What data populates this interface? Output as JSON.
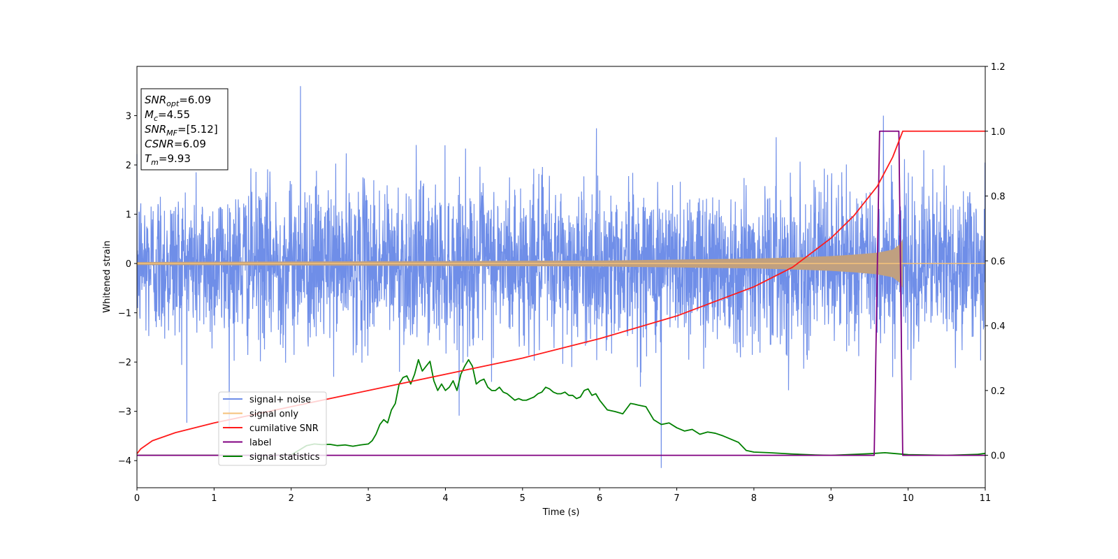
{
  "chart_data": {
    "type": "line",
    "xlabel": "Time (s)",
    "ylabel": "Whitened strain",
    "xlim": [
      0,
      11
    ],
    "ylim": [
      -4.55,
      4.0
    ],
    "y2lim": [
      -0.1,
      1.2
    ],
    "x_ticks": [
      0,
      1,
      2,
      3,
      4,
      5,
      6,
      7,
      8,
      9,
      10,
      11
    ],
    "x_tick_labels": [
      "0",
      "1",
      "2",
      "3",
      "4",
      "5",
      "6",
      "7",
      "8",
      "9",
      "10",
      "11"
    ],
    "y_ticks": [
      3,
      2,
      1,
      0,
      -1,
      -2,
      -3,
      -4
    ],
    "y_tick_labels": [
      "3",
      "2",
      "1",
      "0",
      "−1",
      "−2",
      "−3",
      "−4"
    ],
    "y2_ticks": [
      1.2,
      1.0,
      0.8,
      0.6,
      0.4,
      0.2,
      0.0
    ],
    "y2_tick_labels": [
      "1.2",
      "1.0",
      "0.8",
      "0.6",
      "0.4",
      "0.2",
      "0.0"
    ],
    "legend_location": "lower-left",
    "info_box": [
      {
        "main": "SNR",
        "sub": "opt",
        "rest": "=6.09"
      },
      {
        "main": "M",
        "sub": "c",
        "rest": "=4.55"
      },
      {
        "main": "SNR",
        "sub": "MF",
        "rest": "=[5.12]"
      },
      {
        "main": "CSNR",
        "sub": "",
        "rest": "=6.09"
      },
      {
        "main": "T",
        "sub": "m",
        "rest": "=9.93"
      }
    ],
    "series": [
      {
        "name": "signal+ noise",
        "axis": "left",
        "color": "#6f8ee8",
        "noise_std": 0.8,
        "y_range_observed": [
          -4.15,
          3.6
        ],
        "notable_peaks": {
          "x": [
            2.12,
            9.68,
            6.8
          ],
          "y": [
            3.6,
            3.0,
            -4.15
          ]
        }
      },
      {
        "name": "signal only",
        "axis": "left",
        "color": "#f5c27a",
        "fill_color": "#c0a080",
        "envelope": {
          "x": [
            0,
            2,
            4,
            6,
            7,
            8,
            8.5,
            9,
            9.3,
            9.6,
            9.8,
            9.9,
            9.93
          ],
          "y": [
            0.03,
            0.04,
            0.05,
            0.06,
            0.08,
            0.1,
            0.12,
            0.15,
            0.18,
            0.22,
            0.28,
            0.4,
            0.5
          ]
        },
        "after_merger_value": 0.0
      },
      {
        "name": "cumilative SNR",
        "axis": "right",
        "color": "#ff1a1a",
        "x": [
          0,
          0.05,
          0.2,
          0.5,
          1,
          2,
          3,
          4,
          5,
          6,
          7,
          8,
          8.5,
          9,
          9.3,
          9.6,
          9.8,
          9.93,
          11
        ],
        "y": [
          0.005,
          0.02,
          0.045,
          0.07,
          0.1,
          0.15,
          0.2,
          0.25,
          0.3,
          0.36,
          0.43,
          0.52,
          0.58,
          0.67,
          0.74,
          0.83,
          0.92,
          1.0,
          1.0
        ]
      },
      {
        "name": "label",
        "axis": "right",
        "color": "#800080",
        "x": [
          0,
          9.56,
          9.63,
          9.88,
          9.93,
          11
        ],
        "y": [
          0,
          0,
          1,
          1,
          0,
          0
        ]
      },
      {
        "name": "signal statistics",
        "axis": "right",
        "color": "#008000",
        "x": [
          0,
          0.5,
          1,
          1.5,
          2,
          2.2,
          2.3,
          2.4,
          2.5,
          2.6,
          2.7,
          2.8,
          2.9,
          3.0,
          3.05,
          3.1,
          3.15,
          3.2,
          3.25,
          3.3,
          3.35,
          3.4,
          3.45,
          3.5,
          3.55,
          3.6,
          3.65,
          3.7,
          3.75,
          3.8,
          3.85,
          3.9,
          3.95,
          4.0,
          4.05,
          4.1,
          4.15,
          4.2,
          4.25,
          4.3,
          4.35,
          4.4,
          4.45,
          4.5,
          4.55,
          4.6,
          4.65,
          4.7,
          4.75,
          4.8,
          4.85,
          4.9,
          4.95,
          5.0,
          5.05,
          5.1,
          5.15,
          5.2,
          5.25,
          5.3,
          5.35,
          5.4,
          5.45,
          5.5,
          5.55,
          5.6,
          5.65,
          5.7,
          5.75,
          5.8,
          5.85,
          5.9,
          5.95,
          6.0,
          6.1,
          6.2,
          6.3,
          6.4,
          6.45,
          6.5,
          6.6,
          6.7,
          6.8,
          6.9,
          7.0,
          7.1,
          7.2,
          7.3,
          7.4,
          7.5,
          7.6,
          7.7,
          7.8,
          7.9,
          8.0,
          8.2,
          8.5,
          8.8,
          9.0,
          9.3,
          9.5,
          9.7,
          10.0,
          10.5,
          10.9,
          11.0
        ],
        "y": [
          0,
          0,
          0,
          0,
          0.001,
          0.03,
          0.035,
          0.033,
          0.034,
          0.03,
          0.032,
          0.028,
          0.032,
          0.035,
          0.045,
          0.065,
          0.095,
          0.11,
          0.1,
          0.14,
          0.16,
          0.22,
          0.24,
          0.245,
          0.22,
          0.25,
          0.295,
          0.26,
          0.275,
          0.29,
          0.23,
          0.2,
          0.22,
          0.2,
          0.21,
          0.23,
          0.2,
          0.25,
          0.275,
          0.295,
          0.275,
          0.22,
          0.23,
          0.235,
          0.21,
          0.2,
          0.2,
          0.21,
          0.195,
          0.19,
          0.18,
          0.17,
          0.175,
          0.17,
          0.17,
          0.175,
          0.18,
          0.19,
          0.195,
          0.21,
          0.205,
          0.195,
          0.19,
          0.19,
          0.195,
          0.185,
          0.185,
          0.175,
          0.18,
          0.2,
          0.205,
          0.185,
          0.19,
          0.17,
          0.14,
          0.135,
          0.128,
          0.16,
          0.158,
          0.155,
          0.15,
          0.11,
          0.095,
          0.1,
          0.085,
          0.075,
          0.08,
          0.065,
          0.072,
          0.068,
          0.06,
          0.05,
          0.04,
          0.015,
          0.01,
          0.008,
          0.004,
          0.001,
          0.0,
          0.003,
          0.005,
          0.008,
          0.002,
          0.0,
          0.003,
          0.006
        ]
      }
    ]
  }
}
